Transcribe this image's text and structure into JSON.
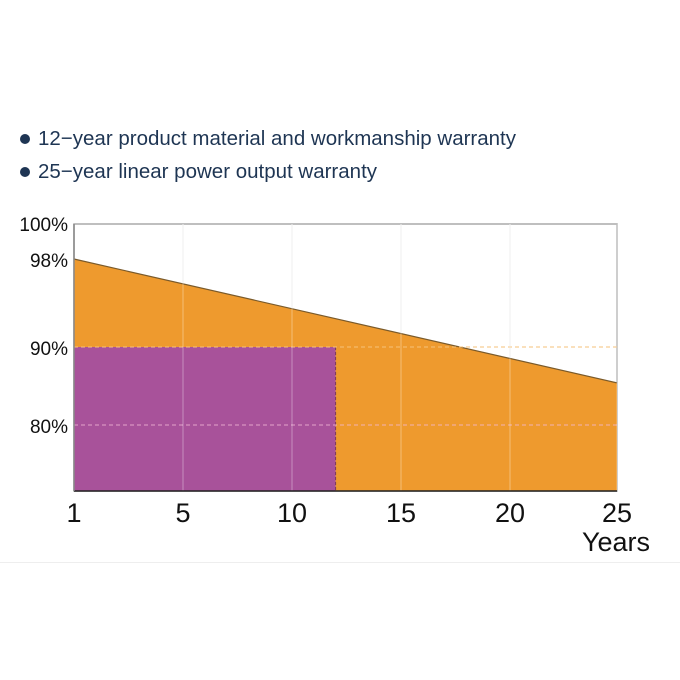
{
  "bullets": [
    "12−year product material and workmanship warranty",
    "25−year linear power output warranty"
  ],
  "chart_data": {
    "type": "area",
    "title": "",
    "xlabel": "Years",
    "ylabel": "",
    "x_ticks": [
      1,
      5,
      10,
      15,
      20,
      25
    ],
    "y_ticks": [
      "100%",
      "98%",
      "90%",
      "80%"
    ],
    "y_tick_values": [
      100,
      98,
      90,
      80
    ],
    "series": [
      {
        "type": "line-area",
        "x": [
          1,
          25
        ],
        "y": [
          98,
          85.4
        ],
        "color": "#ee9a2e"
      },
      {
        "type": "rect",
        "x": [
          1,
          12
        ],
        "y": [
          null,
          90
        ],
        "color": "#a8529a"
      }
    ],
    "grid": true,
    "colors": {
      "text": "#1e3553",
      "orange": "#ee9a2e",
      "purple": "#a8529a",
      "line": "#7a5a2a"
    }
  }
}
